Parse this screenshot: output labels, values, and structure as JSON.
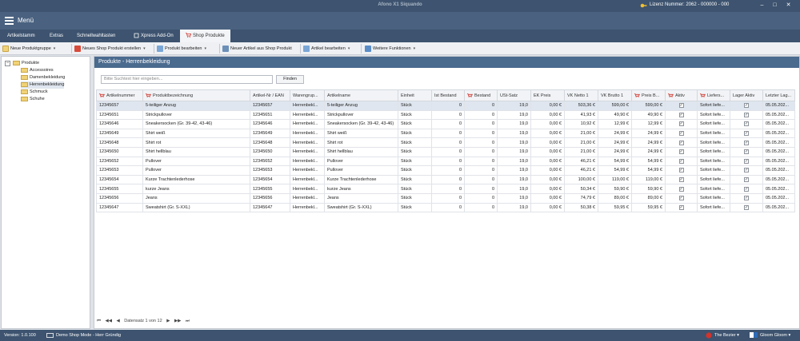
{
  "app": {
    "title": "Afono X1 Siquando",
    "license": "Lizenz Nummer: 2062 - 000000 - 000"
  },
  "window_controls": {
    "minimize": "–",
    "restore": "□",
    "close": "✕"
  },
  "menu": {
    "label": "Menü"
  },
  "tabs": [
    {
      "label": "Artikelstamm"
    },
    {
      "label": "Extras"
    },
    {
      "label": "Schnellwahltasten"
    },
    {
      "label": "Xpress Add-On"
    },
    {
      "label": "Shop Produkte",
      "active": true
    }
  ],
  "toolbar": [
    {
      "label": "Neue Produktgruppe",
      "icon": "folder-add-icon"
    },
    {
      "label": "Neues Shop Produkt erstellen",
      "icon": "cart-add-icon"
    },
    {
      "label": "Produkt bearbeiten",
      "icon": "edit-icon"
    },
    {
      "label": "Neuer Artikel aus Shop Produkt",
      "icon": "article-add-icon"
    },
    {
      "label": "Artikel bearbeiten",
      "icon": "edit-icon"
    },
    {
      "label": "Weitere Funktionen",
      "icon": "grid-icon"
    }
  ],
  "tree": {
    "root": "Produkte",
    "expander": "−",
    "children": [
      "Accessoires",
      "Damenbekleidung",
      "Herrenbekleidung",
      "Schmuck",
      "Schuhe"
    ]
  },
  "panel": {
    "title": "Produkte - Herrenbekleidung",
    "search_placeholder": "Bitte Suchtext hier eingeben...",
    "find_button": "Finden"
  },
  "grid": {
    "columns": [
      "Artikelnummer",
      "Produktbezeichnung",
      "Artikel-Nr / EAN",
      "Warengrup...",
      "Artikelname",
      "Einheit",
      "Ist Bestand",
      "Bestand",
      "USt-Satz",
      "EK Preis",
      "VK Netto 1",
      "VK Brutto 1",
      "Preis B...",
      "Aktiv",
      "Liefers...",
      "Lager Aktiv",
      "Letzter Lag..."
    ],
    "rows": [
      [
        "12345657",
        "5-teiliger Anzug",
        "12345657",
        "Herrenbekl...",
        "5-teiliger Anzug",
        "Stück",
        "0",
        "0",
        "19,0",
        "0,00 €",
        "503,36 €",
        "599,00 €",
        "599,00 €",
        "✓",
        "Sofort liefe...",
        "✓",
        "05.05.202..."
      ],
      [
        "12345651",
        "Strickpullover",
        "12345651",
        "Herrenbekl...",
        "Strickpullover",
        "Stück",
        "0",
        "0",
        "19,0",
        "0,00 €",
        "41,93 €",
        "49,90 €",
        "49,90 €",
        "✓",
        "Sofort liefe...",
        "✓",
        "05.05.202..."
      ],
      [
        "12345646",
        "Sneakersocken (Gr. 39-42, 43-46)",
        "12345646",
        "Herrenbekl...",
        "Sneakersocken (Gr. 39-42, 43-46)",
        "Stück",
        "0",
        "0",
        "19,0",
        "0,00 €",
        "10,92 €",
        "12,99 €",
        "12,99 €",
        "✓",
        "Sofort liefe...",
        "✓",
        "05.05.202..."
      ],
      [
        "12345649",
        "Shirt weiß",
        "12345649",
        "Herrenbekl...",
        "Shirt weiß",
        "Stück",
        "0",
        "0",
        "19,0",
        "0,00 €",
        "21,00 €",
        "24,99 €",
        "24,99 €",
        "✓",
        "Sofort liefe...",
        "✓",
        "05.05.202..."
      ],
      [
        "12345648",
        "Shirt rot",
        "12345648",
        "Herrenbekl...",
        "Shirt rot",
        "Stück",
        "0",
        "0",
        "19,0",
        "0,00 €",
        "21,00 €",
        "24,99 €",
        "24,99 €",
        "✓",
        "Sofort liefe...",
        "✓",
        "05.05.202..."
      ],
      [
        "12345650",
        "Shirt hellblau",
        "12345650",
        "Herrenbekl...",
        "Shirt hellblau",
        "Stück",
        "0",
        "0",
        "19,0",
        "0,00 €",
        "21,00 €",
        "24,99 €",
        "24,99 €",
        "✓",
        "Sofort liefe...",
        "✓",
        "05.05.202..."
      ],
      [
        "12345652",
        "Pullover",
        "12345652",
        "Herrenbekl...",
        "Pullover",
        "Stück",
        "0",
        "0",
        "19,0",
        "0,00 €",
        "46,21 €",
        "54,99 €",
        "54,99 €",
        "✓",
        "Sofort liefe...",
        "✓",
        "05.05.202..."
      ],
      [
        "12345653",
        "Pullover",
        "12345653",
        "Herrenbekl...",
        "Pullover",
        "Stück",
        "0",
        "0",
        "19,0",
        "0,00 €",
        "46,21 €",
        "54,99 €",
        "54,99 €",
        "✓",
        "Sofort liefe...",
        "✓",
        "05.05.202..."
      ],
      [
        "12345654",
        "Kurze Trachtenlederhose",
        "12345654",
        "Herrenbekl...",
        "Kurze Trachtenlederhose",
        "Stück",
        "0",
        "0",
        "19,0",
        "0,00 €",
        "100,00 €",
        "119,00 €",
        "119,00 €",
        "✓",
        "Sofort liefe...",
        "✓",
        "05.05.202..."
      ],
      [
        "12345655",
        "kurze Jeans",
        "12345655",
        "Herrenbekl...",
        "kurze Jeans",
        "Stück",
        "0",
        "0",
        "19,0",
        "0,00 €",
        "50,34 €",
        "59,90 €",
        "59,90 €",
        "✓",
        "Sofort liefe...",
        "✓",
        "05.05.202..."
      ],
      [
        "12345656",
        "Jeans",
        "12345656",
        "Herrenbekl...",
        "Jeans",
        "Stück",
        "0",
        "0",
        "19,0",
        "0,00 €",
        "74,79 €",
        "89,00 €",
        "89,00 €",
        "✓",
        "Sofort liefe...",
        "✓",
        "05.05.202..."
      ],
      [
        "12345647",
        "Sweatshirt (Gr. S-XXL)",
        "12345647",
        "Herrenbekl...",
        "Sweatshirt (Gr. S-XXL)",
        "Stück",
        "0",
        "0",
        "19,0",
        "0,00 €",
        "50,38 €",
        "59,95 €",
        "59,95 €",
        "✓",
        "Sofort liefe...",
        "✓",
        "05.05.202..."
      ]
    ]
  },
  "pager": {
    "first": "⏮",
    "prev_page": "◀◀",
    "prev": "◀",
    "text": "Datensatz 1 von 12",
    "next": "▶",
    "next_page": "▶▶",
    "last": "⏭"
  },
  "status": {
    "version": "Version: 1.0.100",
    "mode": "Demo Shop Mode - Herr Gründig",
    "skin": "The Bezier",
    "theme": "Gloom Gloom"
  }
}
